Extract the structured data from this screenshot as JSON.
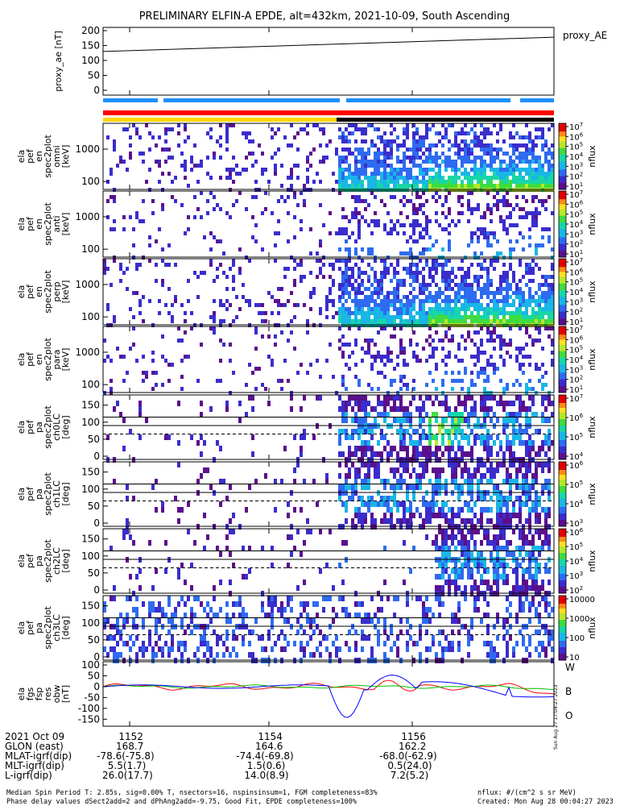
{
  "chart_data": {
    "type": "heatmap",
    "title": "PRELIMINARY ELFIN-A EPDE, alt=432km, 2021-10-09, South Ascending",
    "x_tick_labels": [
      "1152",
      "1154",
      "1156"
    ],
    "panels": [
      {
        "id": "proxy_ae",
        "type": "line",
        "ylabel": "proxy_ae [nT]",
        "yticks": [
          "200",
          "150",
          "100",
          "50",
          "0"
        ],
        "ylim": [
          0,
          200
        ],
        "legend": "proxy_AE",
        "x": [
          0,
          1
        ],
        "y": [
          130,
          178
        ]
      },
      {
        "id": "omni",
        "ylabel": "ela pef en spec2plot omni [keV]",
        "yticks": [
          "1000",
          "100"
        ],
        "cb_ticks": [
          "10^7",
          "10^6",
          "10^5",
          "10^4",
          "10^3",
          "10^2",
          "10^1"
        ],
        "cb_label": "nflux"
      },
      {
        "id": "anti",
        "ylabel": "ela pef en spec2plot anti [keV]",
        "yticks": [
          "1000",
          "100"
        ],
        "cb_ticks": [
          "10^7",
          "10^6",
          "10^5",
          "10^4",
          "10^3",
          "10^2",
          "10^1"
        ],
        "cb_label": "nflux"
      },
      {
        "id": "perp",
        "ylabel": "ela pef en spec2plot perp [keV]",
        "yticks": [
          "1000",
          "100"
        ],
        "cb_ticks": [
          "10^7",
          "10^6",
          "10^5",
          "10^4",
          "10^3",
          "10^2",
          "10^1"
        ],
        "cb_label": "nflux"
      },
      {
        "id": "para",
        "ylabel": "ela pef en spec2plot para [keV]",
        "yticks": [
          "1000",
          "100"
        ],
        "cb_ticks": [
          "10^7",
          "10^6",
          "10^5",
          "10^4",
          "10^3",
          "10^2",
          "10^1"
        ],
        "cb_label": "nflux"
      },
      {
        "id": "ch0LC",
        "ylabel": "ela pef pa spec2plot ch0LC [deg]",
        "yticks": [
          "150",
          "100",
          "50",
          "0"
        ],
        "cb_ticks": [
          "10^7",
          "10^6",
          "10^5",
          "10^4"
        ],
        "cb_label": "nflux"
      },
      {
        "id": "ch1LC",
        "ylabel": "ela pef pa spec2plot ch1LC [deg]",
        "yticks": [
          "150",
          "100",
          "50",
          "0"
        ],
        "cb_ticks": [
          "10^6",
          "10^5",
          "10^4",
          "10^3"
        ],
        "cb_label": "nflux"
      },
      {
        "id": "ch2LC",
        "ylabel": "ela pef pa spec2plot ch2LC [deg]",
        "yticks": [
          "150",
          "100",
          "50",
          "0"
        ],
        "cb_ticks": [
          "10^6",
          "10^5",
          "10^4",
          "10^3",
          "10^2"
        ],
        "cb_label": "nflux"
      },
      {
        "id": "ch3LC",
        "ylabel": "ela pef pa spec2plot ch3LC [deg]",
        "yticks": [
          "150",
          "100",
          "50",
          "0"
        ],
        "cb_ticks": [
          "10000",
          "1000",
          "100",
          "10"
        ],
        "cb_label": "nflux"
      },
      {
        "id": "fgs",
        "type": "line",
        "ylabel": "ela fgs fsp res obw [nT]",
        "yticks": [
          "100",
          "50",
          "0",
          "-50",
          "-100",
          "-150"
        ],
        "ylim": [
          -160,
          100
        ],
        "legend": [
          "W",
          "B",
          "O"
        ],
        "legend_colors": [
          "#ff0000",
          "#00c000",
          "#0000ff"
        ]
      }
    ],
    "side_note": "Sun Aug 27 17:04:27 2023",
    "ticks_table": {
      "rows": [
        {
          "label": "2021 Oct 09",
          "values": [
            "1152",
            "1154",
            "1156"
          ]
        },
        {
          "label": "GLON (east)",
          "values": [
            "168.7",
            "164.6",
            "162.2"
          ]
        },
        {
          "label": "MLAT-igrf(dip)",
          "values": [
            "-78.6(-75.8)",
            "-74.4(-69.8)",
            "-68.0(-62.9)"
          ]
        },
        {
          "label": "MLT-igrf(dip)",
          "values": [
            "5.5(1.7)",
            "1.5(0.6)",
            "0.5(24.0)"
          ]
        },
        {
          "label": "L-igrf(dip)",
          "values": [
            "26.0(17.7)",
            "14.0(8.9)",
            "7.2(5.2)"
          ]
        }
      ]
    },
    "footer": [
      "Median Spin Period T: 2.85s, sig=0.00% T, nsectors=16, nspinsinsum=1, FGM completeness=83%",
      "Phase delay values dSect2add=2 and dPhAng2add=-9.75, Good Fit, EPDE completeness=100%"
    ],
    "footer_right": [
      "nflux: #/(cm^2 s sr MeV)",
      "Created: Mon Aug 28 00:04:27 2023"
    ]
  }
}
